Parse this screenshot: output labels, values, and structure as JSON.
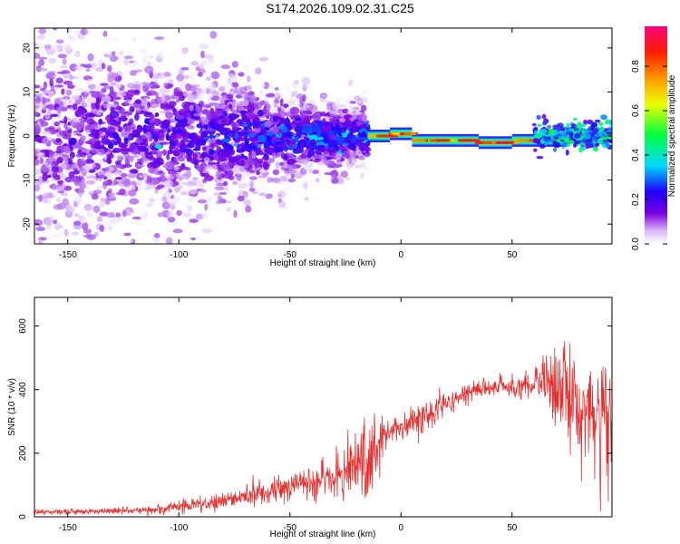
{
  "title": "S174.2026.109.02.31.C25",
  "chart_data": [
    {
      "type": "heatmap",
      "xlabel": "Height of straight line (km)",
      "ylabel": "Frequency (Hz)",
      "xlim": [
        -165,
        95
      ],
      "ylim": [
        -24.5,
        24.5
      ],
      "xticks": [
        -150,
        -100,
        -50,
        0,
        50
      ],
      "yticks": [
        -20,
        -10,
        0,
        10,
        20
      ],
      "colorbar": {
        "label": "Normalized spectral amplitude",
        "range": [
          0,
          0.98
        ],
        "ticks": [
          0.0,
          0.2,
          0.4,
          0.6,
          0.8
        ],
        "tick_labels": [
          "0.0",
          "0.2",
          "0.4",
          "0.6",
          "0.8"
        ]
      },
      "description_of_field": {
        "scatter_region_x": [
          -165,
          -15
        ],
        "scatter_amplitude_max": 0.3,
        "scatter_freq_halfwidth_start": 24,
        "scatter_freq_halfwidth_end": 6,
        "narrowband_region_x": [
          -15,
          95
        ],
        "narrowband_amplitude": 0.95,
        "narrowband_segments": [
          {
            "x": [
              -15,
              -5
            ],
            "freq": 0
          },
          {
            "x": [
              -5,
              5
            ],
            "freq": 0.5
          },
          {
            "x": [
              5,
              35
            ],
            "freq": -1
          },
          {
            "x": [
              35,
              50
            ],
            "freq": -1.5
          },
          {
            "x": [
              50,
              75
            ],
            "freq": -1
          },
          {
            "x": [
              75,
              95
            ],
            "freq": 0
          }
        ]
      }
    },
    {
      "type": "line",
      "xlabel": "Height of straight line (km)",
      "ylabel": "SNR (10 * v/v)",
      "xlim": [
        -165,
        95
      ],
      "ylim": [
        0,
        690
      ],
      "xticks": [
        -150,
        -100,
        -50,
        0,
        50
      ],
      "yticks": [
        0,
        200,
        400,
        600
      ],
      "color": "#e83030",
      "envelope": {
        "x": [
          -165,
          -130,
          -110,
          -90,
          -70,
          -50,
          -30,
          -20,
          -12,
          -10,
          -5,
          0,
          10,
          20,
          30,
          40,
          50,
          60,
          70,
          80,
          90,
          95
        ],
        "mean": [
          15,
          18,
          22,
          40,
          60,
          95,
          130,
          170,
          160,
          230,
          265,
          280,
          310,
          350,
          390,
          405,
          410,
          420,
          390,
          350,
          320,
          300
        ],
        "spread": [
          10,
          10,
          18,
          25,
          35,
          50,
          80,
          140,
          160,
          90,
          40,
          40,
          60,
          40,
          30,
          30,
          40,
          60,
          150,
          190,
          220,
          200
        ]
      }
    }
  ]
}
